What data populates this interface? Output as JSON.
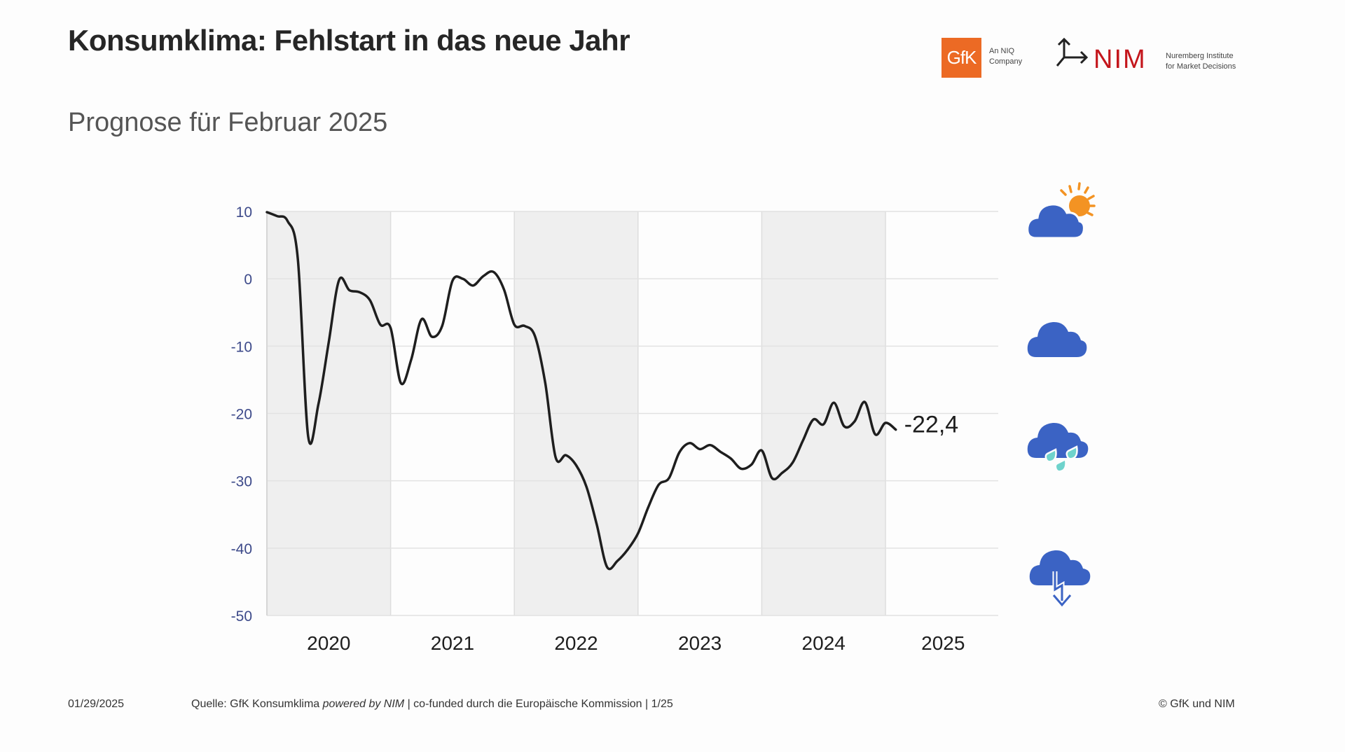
{
  "header": {
    "title": "Konsumklima: Fehlstart in das neue Jahr",
    "subtitle": "Prognose für Februar 2025"
  },
  "logos": {
    "gfk": {
      "mark": "GfK",
      "tagline_line1": "An NIQ",
      "tagline_line2": "Company",
      "color": "#ec6a24"
    },
    "nim": {
      "mark": "NIM",
      "tagline_line1": "Nuremberg Institute",
      "tagline_line2": "for Market Decisions",
      "color": "#c4161c",
      "icon": "split-arrow-icon"
    }
  },
  "weather_icons": [
    {
      "name": "sun-behind-cloud-icon",
      "meaning": "good"
    },
    {
      "name": "cloud-icon",
      "meaning": "neutral"
    },
    {
      "name": "rain-cloud-icon",
      "meaning": "bad"
    },
    {
      "name": "thunderstorm-cloud-icon",
      "meaning": "very bad"
    }
  ],
  "colors": {
    "cloud": "#3b63c4",
    "sun": "#f39323",
    "rain": "#6fd3cc",
    "line": "#1e1e1e",
    "band": "#efefef",
    "axis_label": "#3d4a8a"
  },
  "chart_data": {
    "type": "line",
    "title": "Konsumklima",
    "subtitle": "Prognose für Februar 2025",
    "xlabel": "",
    "ylabel": "",
    "ylim": [
      -50,
      10
    ],
    "yticks": [
      10,
      0,
      -10,
      -20,
      -30,
      -40,
      -50
    ],
    "ytick_labels": [
      "10",
      "0",
      "-10",
      "-20",
      "-30",
      "-40",
      "-50"
    ],
    "categories": [
      "2020",
      "2021",
      "2022",
      "2023",
      "2024",
      "2025"
    ],
    "shaded_years": [
      "2020",
      "2022",
      "2024"
    ],
    "grid": true,
    "end_label": "-22,4",
    "series": [
      {
        "name": "Konsumklima",
        "start": "2020-01",
        "frequency": "monthly",
        "values": [
          9.9,
          9.3,
          8.6,
          3.0,
          -23.4,
          -18.6,
          -9.4,
          -0.2,
          -1.7,
          -2.0,
          -3.2,
          -6.8,
          -7.3,
          -15.5,
          -12.0,
          -6.0,
          -8.6,
          -7.0,
          -0.3,
          0.0,
          -1.0,
          0.4,
          1.0,
          -1.6,
          -6.8,
          -7.0,
          -8.5,
          -15.5,
          -26.5,
          -26.2,
          -27.7,
          -30.9,
          -36.5,
          -42.8,
          -41.9,
          -40.2,
          -37.8,
          -33.9,
          -30.6,
          -29.6,
          -25.8,
          -24.4,
          -25.3,
          -24.7,
          -25.7,
          -26.7,
          -28.2,
          -27.6,
          -25.5,
          -29.6,
          -28.8,
          -27.3,
          -24.0,
          -20.9,
          -21.6,
          -18.4,
          -21.9,
          -21.2,
          -18.3,
          -23.1,
          -21.4,
          -22.4
        ]
      }
    ]
  },
  "footer": {
    "date": "01/29/2025",
    "source_prefix": "Quelle: GfK Konsumklima ",
    "source_italic": "powered by NIM",
    "source_suffix": " | co-funded durch die Europäische Kommission | 1/25",
    "copyright": "© GfK und NIM"
  }
}
